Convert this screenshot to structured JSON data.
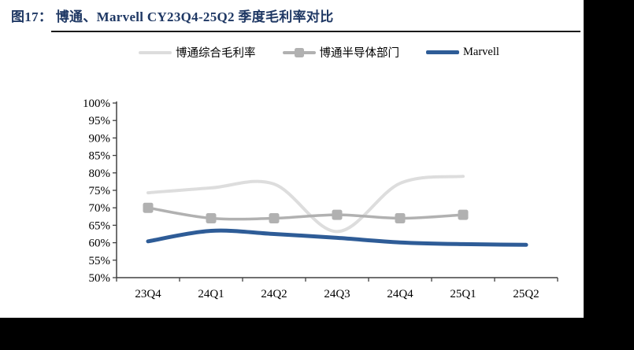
{
  "page": {
    "figure_label": "图17：",
    "title": "图17： 博通、Marvell CY23Q4-25Q2 季度毛利率对比"
  },
  "colors": {
    "title_navy": "#1F3864",
    "page_bg": "#FFFFFF",
    "outside_bg": "#000000",
    "axis": "#404040",
    "tick_text": "#000000",
    "divider": "#1A1A1A"
  },
  "chart_data": {
    "type": "line",
    "title": "图17： 博通、Marvell CY23Q4-25Q2 季度毛利率对比",
    "categories": [
      "23Q4",
      "24Q1",
      "24Q2",
      "24Q3",
      "24Q4",
      "25Q1",
      "25Q2"
    ],
    "series": [
      {
        "name": "博通综合毛利率",
        "color": "#DDDDDD",
        "marker": "none",
        "smooth": true,
        "stroke_width": 4,
        "values": [
          74.3,
          75.7,
          76.8,
          63.2,
          77,
          79,
          null
        ]
      },
      {
        "name": "博通半导体部门",
        "color": "#B1B1B1",
        "marker": "square",
        "smooth": true,
        "stroke_width": 3.5,
        "values": [
          70,
          67,
          67,
          68,
          67,
          68,
          null
        ]
      },
      {
        "name": "Marvell",
        "color": "#2E5C97",
        "marker": "none",
        "smooth": true,
        "stroke_width": 5,
        "values": [
          60.4,
          63.4,
          62.5,
          61.4,
          60.1,
          59.6,
          59.4
        ]
      }
    ],
    "ylim": [
      50,
      100
    ],
    "ytick_step": 5,
    "ytick_labels": [
      "50%",
      "55%",
      "60%",
      "65%",
      "70%",
      "75%",
      "80%",
      "85%",
      "90%",
      "95%",
      "100%"
    ],
    "ylabel_format": "percent",
    "grid": false,
    "legend_position": "top"
  }
}
